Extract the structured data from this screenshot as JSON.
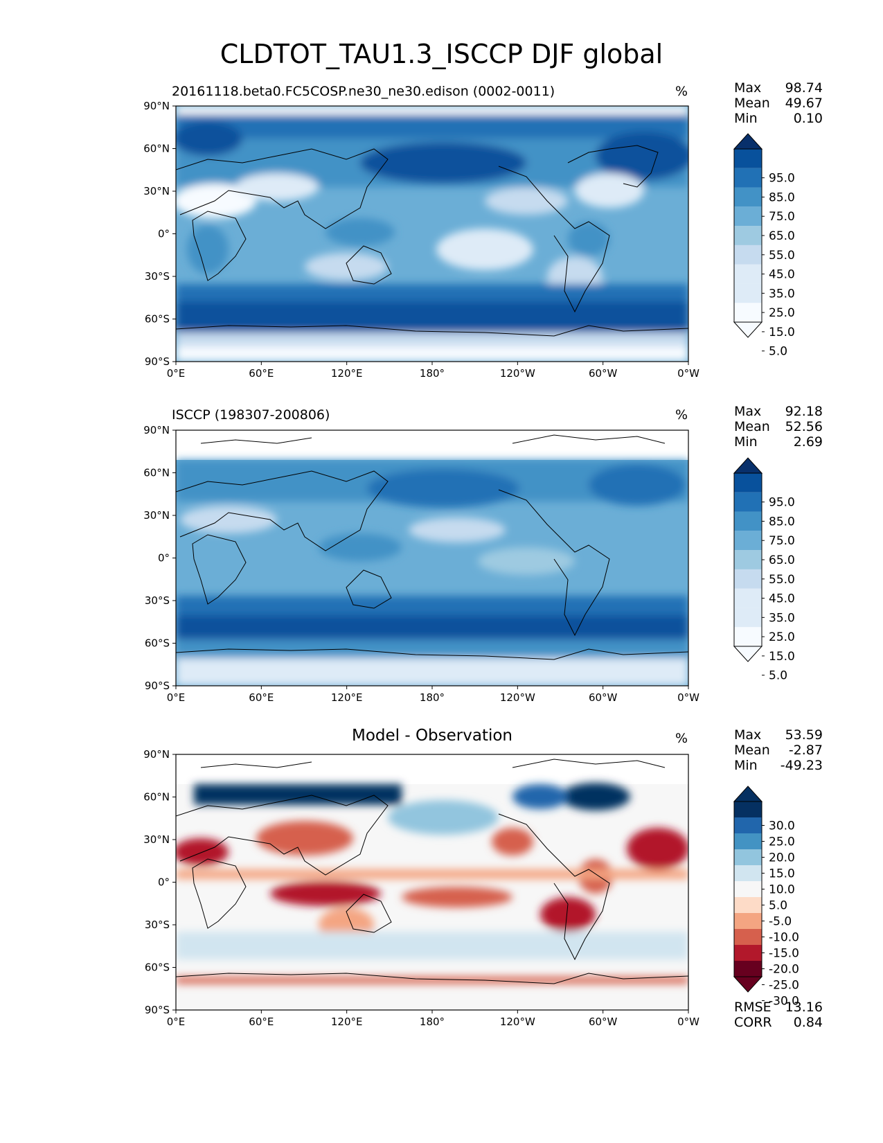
{
  "title": "CLDTOT_TAU1.3_ISCCP DJF global",
  "panels": [
    {
      "title": "20161118.beta0.FC5COSP.ne30_ne30.edison (0002-0011)",
      "units": "%",
      "stats": {
        "Max": "98.74",
        "Mean": "49.67",
        "Min": "0.10"
      },
      "colorbar_labels": [
        "95.0",
        "85.0",
        "75.0",
        "65.0",
        "55.0",
        "45.0",
        "35.0",
        "25.0",
        "15.0",
        "5.0"
      ]
    },
    {
      "title": "ISCCP (198307-200806)",
      "units": "%",
      "stats": {
        "Max": "92.18",
        "Mean": "52.56",
        "Min": "2.69"
      },
      "colorbar_labels": [
        "95.0",
        "85.0",
        "75.0",
        "65.0",
        "55.0",
        "45.0",
        "35.0",
        "25.0",
        "15.0",
        "5.0"
      ]
    },
    {
      "title": "Model - Observation",
      "units": "%",
      "stats": {
        "Max": "53.59",
        "Mean": "-2.87",
        "Min": "-49.23"
      },
      "colorbar_labels": [
        "30.0",
        "25.0",
        "20.0",
        "15.0",
        "10.0",
        "5.0",
        "-5.0",
        "-10.0",
        "-15.0",
        "-20.0",
        "-25.0",
        "-30.0"
      ],
      "metrics": {
        "RMSE": "13.16",
        "CORR": "0.84"
      }
    }
  ],
  "axes": {
    "lat_ticks": [
      "90°N",
      "60°N",
      "30°N",
      "0°",
      "30°S",
      "60°S",
      "90°S"
    ],
    "lon_ticks": [
      "0°E",
      "60°E",
      "120°E",
      "180°",
      "120°W",
      "60°W",
      "0°W"
    ]
  },
  "colors": {
    "blues": [
      "#f7fbff",
      "#deebf7",
      "#c6dbef",
      "#9ecae1",
      "#6baed6",
      "#4292c6",
      "#2171b5",
      "#08519c",
      "#08306b"
    ],
    "diff": [
      "#67001f",
      "#b2182b",
      "#d6604d",
      "#f4a582",
      "#fddbc7",
      "#f7f7f7",
      "#d1e5f0",
      "#92c5de",
      "#4393c3",
      "#2166ac",
      "#053061"
    ]
  }
}
